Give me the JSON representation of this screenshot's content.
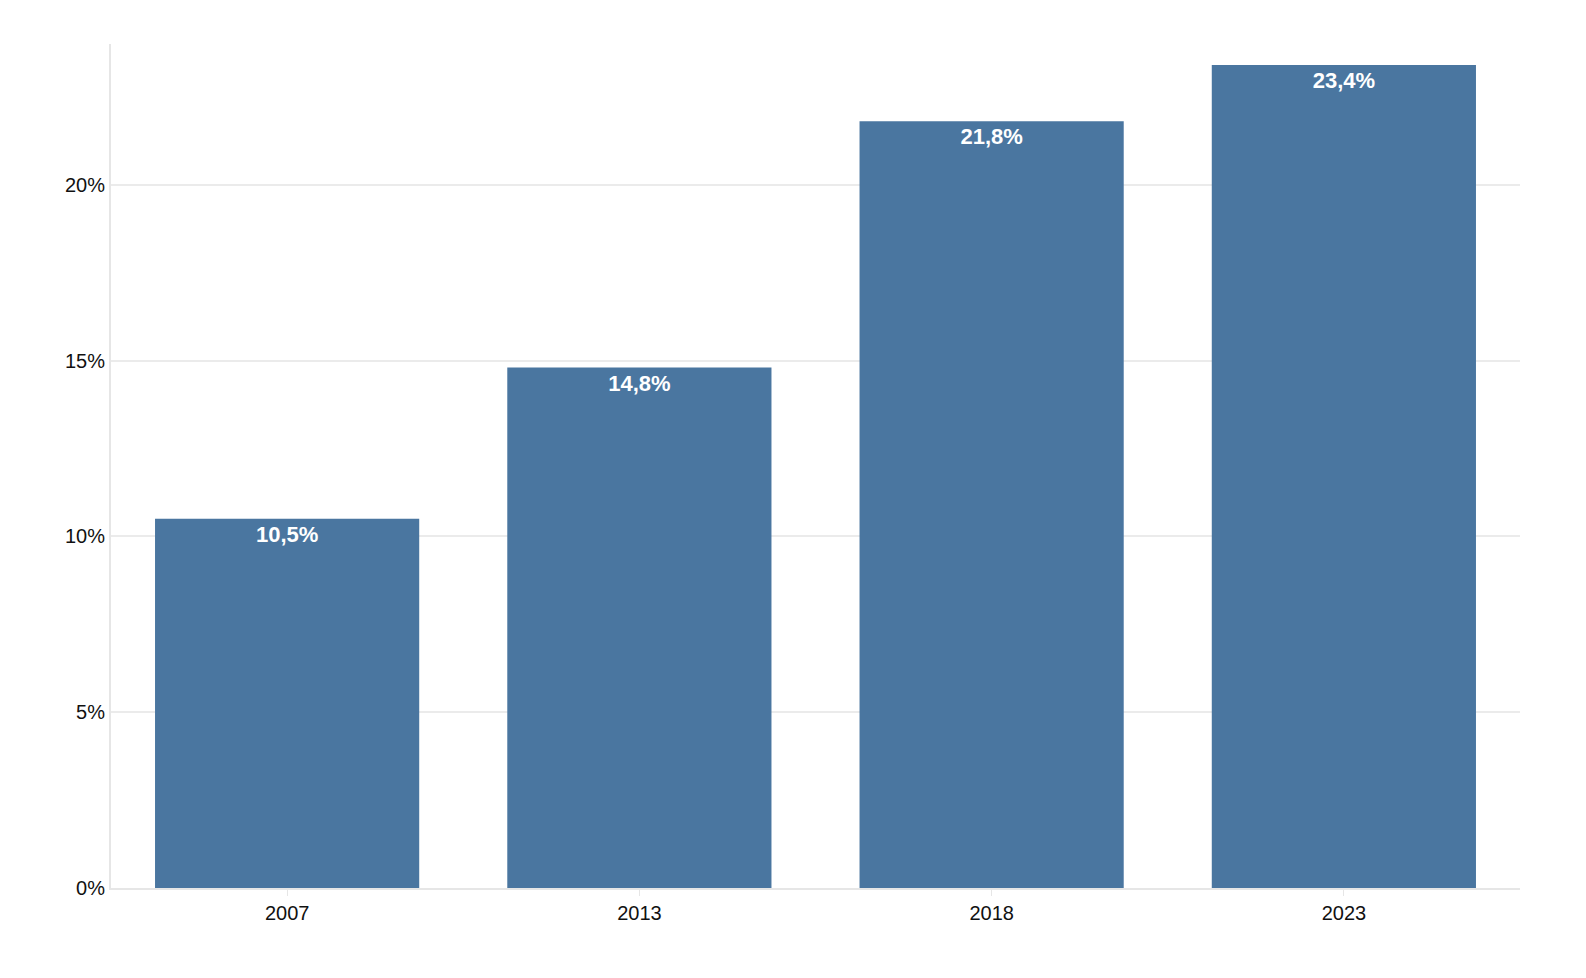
{
  "chart_data": {
    "type": "bar",
    "categories": [
      "2007",
      "2013",
      "2018",
      "2023"
    ],
    "values": [
      10.5,
      14.8,
      21.8,
      23.4
    ],
    "value_labels": [
      "10,5%",
      "14,8%",
      "21,8%",
      "23,4%"
    ],
    "data_labels": true,
    "color": "#4a76a0",
    "ylim": [
      0,
      24
    ],
    "yticks": [
      {
        "value": 0,
        "label": "0%"
      },
      {
        "value": 5,
        "label": "5%"
      },
      {
        "value": 10,
        "label": "10%"
      },
      {
        "value": 15,
        "label": "15%"
      },
      {
        "value": 20,
        "label": "20%"
      }
    ],
    "grid": true
  }
}
